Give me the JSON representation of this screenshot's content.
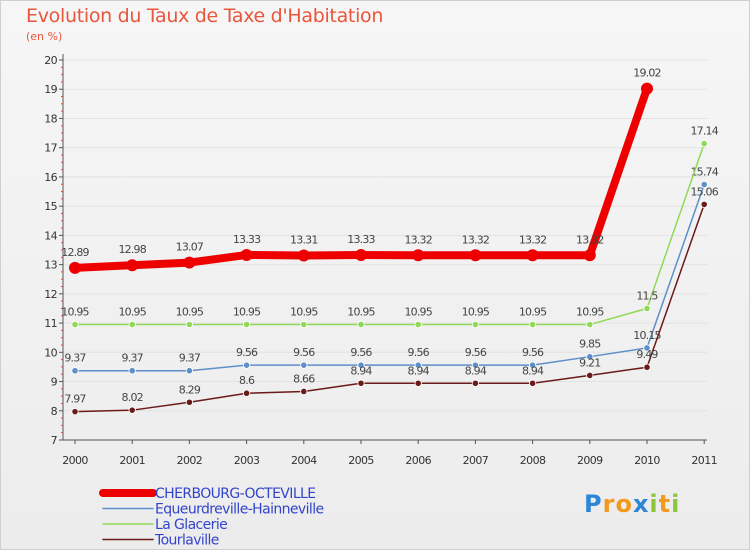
{
  "header": {
    "title": "Evolution du Taux de Taxe d'Habitation",
    "subtitle": "(en %)"
  },
  "chart_data": {
    "type": "line",
    "title": "Evolution du Taux de Taxe d'Habitation",
    "ylabel": "(en %)",
    "xlabel": "",
    "categories": [
      "2000",
      "2001",
      "2002",
      "2003",
      "2004",
      "2005",
      "2006",
      "2007",
      "2008",
      "2009",
      "2010",
      "2011"
    ],
    "ylim": [
      7,
      20
    ],
    "yticks": [
      7,
      8,
      9,
      10,
      11,
      12,
      13,
      14,
      15,
      16,
      17,
      18,
      19,
      20
    ],
    "legend_position": "bottom-left",
    "series": [
      {
        "name": "CHERBOURG-OCTEVILLE",
        "color": "#ee0000",
        "emphasis": true,
        "values": [
          12.89,
          12.98,
          13.07,
          13.33,
          13.31,
          13.33,
          13.32,
          13.32,
          13.32,
          13.32,
          19.02,
          null
        ],
        "labels": [
          "12.89",
          "12.98",
          "13.07",
          "13.33",
          "13.31",
          "13.33",
          "13.32",
          "13.32",
          "13.32",
          "13.32",
          "19.02",
          ""
        ]
      },
      {
        "name": "Equeurdreville-Hainneville",
        "color": "#5d8fc9",
        "emphasis": false,
        "values": [
          9.37,
          9.37,
          9.37,
          9.56,
          9.56,
          9.56,
          9.56,
          9.56,
          9.56,
          9.85,
          10.15,
          15.74
        ],
        "labels": [
          "9.37",
          "9.37",
          "9.37",
          "9.56",
          "9.56",
          "9.56",
          "9.56",
          "9.56",
          "9.56",
          "9.85",
          "10.15",
          "15.74"
        ]
      },
      {
        "name": "La Glacerie",
        "color": "#8fd957",
        "emphasis": false,
        "values": [
          10.95,
          10.95,
          10.95,
          10.95,
          10.95,
          10.95,
          10.95,
          10.95,
          10.95,
          10.95,
          11.5,
          17.14
        ],
        "labels": [
          "10.95",
          "10.95",
          "10.95",
          "10.95",
          "10.95",
          "10.95",
          "10.95",
          "10.95",
          "10.95",
          "10.95",
          "11.5",
          "17.14"
        ]
      },
      {
        "name": "Tourlaville",
        "color": "#6b1a1a",
        "emphasis": false,
        "values": [
          7.97,
          8.02,
          8.29,
          8.6,
          8.66,
          8.94,
          8.94,
          8.94,
          8.94,
          9.21,
          9.49,
          15.06
        ],
        "labels": [
          "7.97",
          "8.02",
          "8.29",
          "8.6",
          "8.66",
          "8.94",
          "8.94",
          "8.94",
          "8.94",
          "9.21",
          "9.49",
          "15.06"
        ]
      }
    ]
  },
  "legend": {
    "items": [
      {
        "label": "CHERBOURG-OCTEVILLE",
        "color": "#ee0000",
        "text_color": "#3344cc"
      },
      {
        "label": "Equeurdreville-Hainneville",
        "color": "#5d8fc9",
        "text_color": "#3344cc"
      },
      {
        "label": "La Glacerie",
        "color": "#8fd957",
        "text_color": "#3344cc"
      },
      {
        "label": "Tourlaville",
        "color": "#6b1a1a",
        "text_color": "#3344cc"
      }
    ]
  },
  "logo": {
    "text": "Proxiti",
    "letters": [
      {
        "ch": "P",
        "color": "#2e86d6"
      },
      {
        "ch": "r",
        "color": "#f29a1e"
      },
      {
        "ch": "o",
        "color": "#f29a1e"
      },
      {
        "ch": "x",
        "color": "#2e86d6"
      },
      {
        "ch": "i",
        "color": "#8cc63f"
      },
      {
        "ch": "t",
        "color": "#f29a1e"
      },
      {
        "ch": "i",
        "color": "#8cc63f"
      }
    ]
  }
}
